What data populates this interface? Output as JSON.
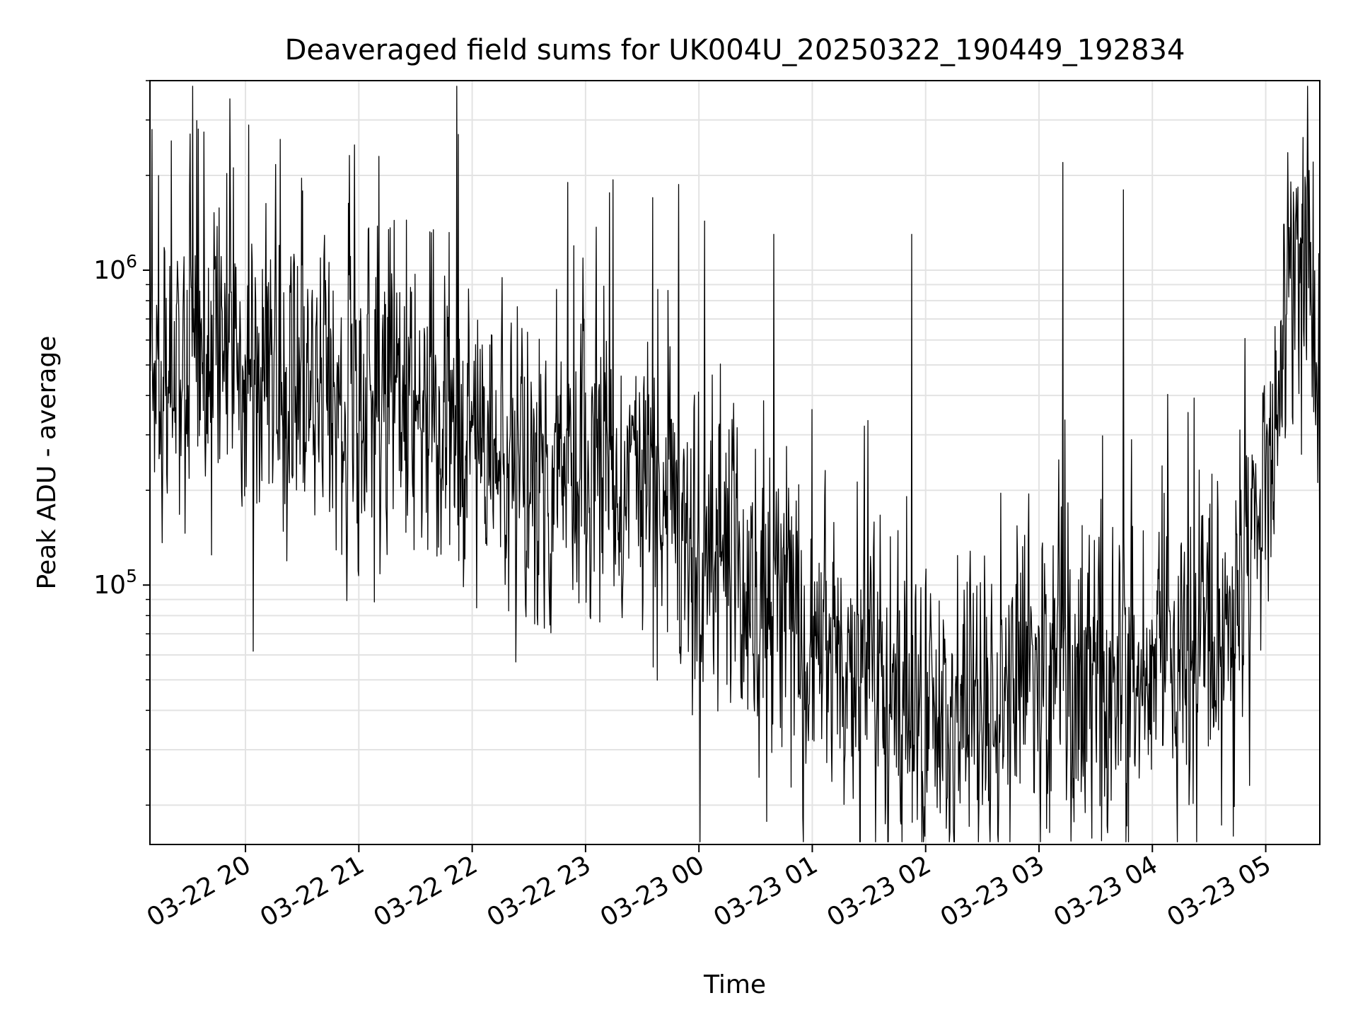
{
  "chart_data": {
    "type": "line",
    "title": "Deaveraged field sums for UK004U_20250322_190449_192834",
    "xlabel": "Time",
    "ylabel": "Peak ADU - average",
    "y_scale": "log",
    "y_major_ticks": [
      {
        "value": 100000,
        "base": "10",
        "exp": "5"
      },
      {
        "value": 1000000,
        "base": "10",
        "exp": "6"
      }
    ],
    "x_ticks": [
      "03-22 20",
      "03-22 21",
      "03-22 22",
      "03-22 23",
      "03-23 00",
      "03-23 01",
      "03-23 02",
      "03-23 03",
      "03-23 04",
      "03-23 05"
    ],
    "x_tick_hours": [
      0.923,
      1.923,
      2.923,
      3.923,
      4.923,
      5.923,
      6.923,
      7.923,
      8.923,
      9.923
    ],
    "xlim": [
      "03-22 19:04:49",
      "03-23 05:24:00"
    ],
    "ylim": [
      15000,
      4000000
    ],
    "grid": true,
    "line_color": "#000000",
    "series": [
      {
        "profile_note": "single noisy series; baseline trend in Peak ADU - average",
        "baseline": [
          [
            "03-22 19:04:49",
            500000
          ],
          [
            "03-22 19:30",
            500000
          ],
          [
            "03-22 20:00",
            440000
          ],
          [
            "03-22 20:30",
            400000
          ],
          [
            "03-22 21:00",
            380000
          ],
          [
            "03-22 21:30",
            370000
          ],
          [
            "03-22 22:00",
            320000
          ],
          [
            "03-22 22:30",
            220000
          ],
          [
            "03-22 23:00",
            230000
          ],
          [
            "03-22 23:30",
            210000
          ],
          [
            "03-23 00:00",
            110000
          ],
          [
            "03-23 00:30",
            85000
          ],
          [
            "03-23 01:00",
            70000
          ],
          [
            "03-23 01:30",
            42000
          ],
          [
            "03-23 02:00",
            38000
          ],
          [
            "03-23 02:30",
            42000
          ],
          [
            "03-23 03:00",
            55000
          ],
          [
            "03-23 03:30",
            60000
          ],
          [
            "03-23 04:00",
            62000
          ],
          [
            "03-23 04:30",
            65000
          ],
          [
            "03-23 04:45",
            110000
          ],
          [
            "03-23 05:00",
            300000
          ],
          [
            "03-23 05:10",
            900000
          ],
          [
            "03-23 05:20",
            1000000
          ],
          [
            "03-23 05:24",
            200000
          ]
        ],
        "spikes": [
          [
            "03-22 19:06",
            2800000
          ],
          [
            "03-22 19:47",
            3500000
          ],
          [
            "03-22 20:53",
            2500000
          ],
          [
            "03-22 21:06",
            2300000
          ],
          [
            "03-22 21:48",
            2700000
          ],
          [
            "03-22 22:46",
            1900000
          ],
          [
            "03-22 23:31",
            1700000
          ],
          [
            "03-23 00:35",
            1300000
          ],
          [
            "03-23 01:48",
            1300000
          ],
          [
            "03-23 03:08",
            2200000
          ],
          [
            "03-23 03:40",
            1800000
          ],
          [
            "03-23 05:05",
            1400000
          ]
        ]
      }
    ]
  }
}
